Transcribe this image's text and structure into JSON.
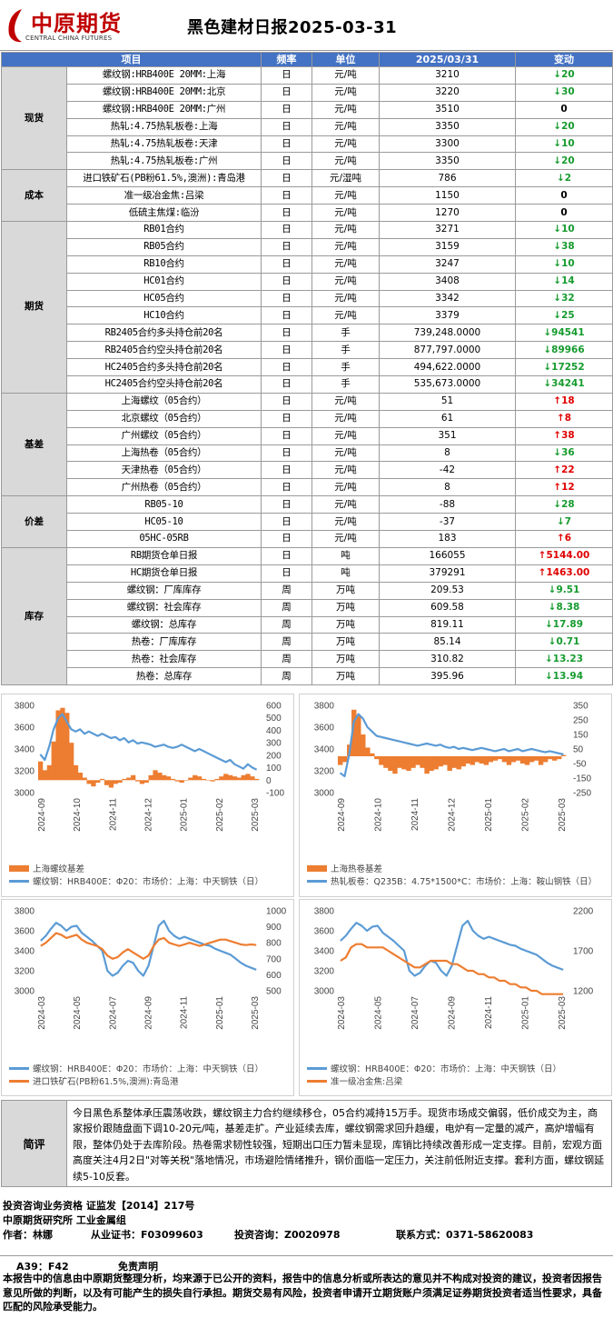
{
  "header": {
    "logo_cn": "中原期货",
    "logo_en": "CENTRAL CHINA FUTURES",
    "title": "黑色建材日报2025-03-31",
    "brand_color": "#c00000"
  },
  "table": {
    "columns": [
      "项目",
      "频率",
      "单位",
      "2025/03/31",
      "变动"
    ],
    "groups": [
      {
        "category": "现货",
        "rows": [
          {
            "item": "螺纹钢:HRB400E 20MM:上海",
            "freq": "日",
            "unit": "元/吨",
            "value": "3210",
            "dir": "down",
            "change": "20"
          },
          {
            "item": "螺纹钢:HRB400E 20MM:北京",
            "freq": "日",
            "unit": "元/吨",
            "value": "3220",
            "dir": "down",
            "change": "30"
          },
          {
            "item": "螺纹钢:HRB400E 20MM:广州",
            "freq": "日",
            "unit": "元/吨",
            "value": "3510",
            "dir": "none",
            "change": "0"
          },
          {
            "item": "热轧:4.75热轧板卷:上海",
            "freq": "日",
            "unit": "元/吨",
            "value": "3350",
            "dir": "down",
            "change": "20"
          },
          {
            "item": "热轧:4.75热轧板卷:天津",
            "freq": "日",
            "unit": "元/吨",
            "value": "3300",
            "dir": "down",
            "change": "10"
          },
          {
            "item": "热轧:4.75热轧板卷:广州",
            "freq": "日",
            "unit": "元/吨",
            "value": "3350",
            "dir": "down",
            "change": "20"
          }
        ]
      },
      {
        "category": "成本",
        "rows": [
          {
            "item": "进口铁矿石(PB粉61.5%,澳洲):青岛港",
            "freq": "日",
            "unit": "元/湿吨",
            "value": "786",
            "dir": "down",
            "change": "2"
          },
          {
            "item": "准一级冶金焦:吕梁",
            "freq": "日",
            "unit": "元/吨",
            "value": "1150",
            "dir": "none",
            "change": "0"
          },
          {
            "item": "低硫主焦煤:临汾",
            "freq": "日",
            "unit": "元/吨",
            "value": "1270",
            "dir": "none",
            "change": "0"
          }
        ]
      },
      {
        "category": "期货",
        "rows": [
          {
            "item": "RB01合约",
            "freq": "日",
            "unit": "元/吨",
            "value": "3271",
            "dir": "down",
            "change": "10"
          },
          {
            "item": "RB05合约",
            "freq": "日",
            "unit": "元/吨",
            "value": "3159",
            "dir": "down",
            "change": "38"
          },
          {
            "item": "RB10合约",
            "freq": "日",
            "unit": "元/吨",
            "value": "3247",
            "dir": "down",
            "change": "10"
          },
          {
            "item": "HC01合约",
            "freq": "日",
            "unit": "元/吨",
            "value": "3408",
            "dir": "down",
            "change": "14"
          },
          {
            "item": "HC05合约",
            "freq": "日",
            "unit": "元/吨",
            "value": "3342",
            "dir": "down",
            "change": "32"
          },
          {
            "item": "HC10合约",
            "freq": "日",
            "unit": "元/吨",
            "value": "3379",
            "dir": "down",
            "change": "25"
          },
          {
            "item": "RB2405合约多头持仓前20名",
            "freq": "日",
            "unit": "手",
            "value": "739,248.0000",
            "dir": "down",
            "change": "94541"
          },
          {
            "item": "RB2405合约空头持仓前20名",
            "freq": "日",
            "unit": "手",
            "value": "877,797.0000",
            "dir": "down",
            "change": "89966"
          },
          {
            "item": "HC2405合约多头持仓前20名",
            "freq": "日",
            "unit": "手",
            "value": "494,622.0000",
            "dir": "down",
            "change": "17252"
          },
          {
            "item": "HC2405合约空头持仓前20名",
            "freq": "日",
            "unit": "手",
            "value": "535,673.0000",
            "dir": "down",
            "change": "34241"
          }
        ]
      },
      {
        "category": "基差",
        "rows": [
          {
            "item": "上海螺纹（05合约）",
            "freq": "日",
            "unit": "元/吨",
            "value": "51",
            "dir": "up",
            "change": "18"
          },
          {
            "item": "北京螺纹（05合约）",
            "freq": "日",
            "unit": "元/吨",
            "value": "61",
            "dir": "up",
            "change": "8"
          },
          {
            "item": "广州螺纹（05合约）",
            "freq": "日",
            "unit": "元/吨",
            "value": "351",
            "dir": "up",
            "change": "38"
          },
          {
            "item": "上海热卷（05合约）",
            "freq": "日",
            "unit": "元/吨",
            "value": "8",
            "dir": "down",
            "change": "36"
          },
          {
            "item": "天津热卷（05合约）",
            "freq": "日",
            "unit": "元/吨",
            "value": "-42",
            "dir": "up",
            "change": "22"
          },
          {
            "item": "广州热卷（05合约）",
            "freq": "日",
            "unit": "元/吨",
            "value": "8",
            "dir": "up",
            "change": "12"
          }
        ]
      },
      {
        "category": "价差",
        "rows": [
          {
            "item": "RB05-10",
            "freq": "日",
            "unit": "元/吨",
            "value": "-88",
            "dir": "down",
            "change": "28"
          },
          {
            "item": "HC05-10",
            "freq": "日",
            "unit": "元/吨",
            "value": "-37",
            "dir": "down",
            "change": "7"
          },
          {
            "item": "05HC-05RB",
            "freq": "日",
            "unit": "元/吨",
            "value": "183",
            "dir": "up",
            "change": "6"
          }
        ]
      },
      {
        "category": "库存",
        "rows": [
          {
            "item": "RB期货仓单日报",
            "freq": "日",
            "unit": "吨",
            "value": "166055",
            "dir": "up",
            "change": "5144.00"
          },
          {
            "item": "HC期货仓单日报",
            "freq": "日",
            "unit": "吨",
            "value": "379291",
            "dir": "up",
            "change": "1463.00"
          },
          {
            "item": "螺纹钢：厂库库存",
            "freq": "周",
            "unit": "万吨",
            "value": "209.53",
            "dir": "down",
            "change": "9.51"
          },
          {
            "item": "螺纹钢：社会库存",
            "freq": "周",
            "unit": "万吨",
            "value": "609.58",
            "dir": "down",
            "change": "8.38"
          },
          {
            "item": "螺纹钢：总库存",
            "freq": "周",
            "unit": "万吨",
            "value": "819.11",
            "dir": "down",
            "change": "17.89"
          },
          {
            "item": "热卷：厂库库存",
            "freq": "周",
            "unit": "万吨",
            "value": "85.14",
            "dir": "down",
            "change": "0.71"
          },
          {
            "item": "热卷：社会库存",
            "freq": "周",
            "unit": "万吨",
            "value": "310.82",
            "dir": "down",
            "change": "13.23"
          },
          {
            "item": "热卷：总库存",
            "freq": "周",
            "unit": "万吨",
            "value": "395.96",
            "dir": "down",
            "change": "13.94"
          }
        ]
      }
    ],
    "colors": {
      "header_bg": "#4472c4",
      "category_bg": "#d9d9d9",
      "up": "#e00000",
      "down": "#169b2e"
    },
    "arrows": {
      "up": "↑",
      "down": "↓"
    }
  },
  "chart_data": [
    {
      "type": "line",
      "left_ticks": [
        "3800",
        "3600",
        "3400",
        "3200",
        "3000"
      ],
      "right_ticks": [
        "600",
        "500",
        "400",
        "300",
        "200",
        "100",
        "0",
        "-100"
      ],
      "x_ticks": [
        "2024-09",
        "2024-10",
        "2024-11",
        "2024-12",
        "2025-01",
        "2025-02",
        "2025-03"
      ],
      "ylim": [
        3000,
        3800
      ],
      "y2lim": [
        -100,
        600
      ],
      "series": [
        {
          "name": "上海螺纹基差",
          "kind": "bar",
          "axis": "right",
          "color": "#ed7d31",
          "values": [
            150,
            80,
            120,
            310,
            560,
            580,
            540,
            300,
            120,
            60,
            20,
            -30,
            -50,
            -20,
            10,
            -40,
            -60,
            -30,
            -20,
            10,
            20,
            40,
            -10,
            -30,
            -20,
            40,
            80,
            60,
            40,
            30,
            10,
            -10,
            -20,
            0,
            20,
            40,
            30,
            10,
            0,
            -10,
            10,
            30,
            50,
            40,
            30,
            20,
            40,
            50,
            30,
            10
          ]
        },
        {
          "name": "螺纹钢：HRB400E：Φ20：市场价：上海：中天钢铁（日）",
          "kind": "line",
          "axis": "left",
          "color": "#5b9bd5",
          "values": [
            3350,
            3300,
            3420,
            3580,
            3680,
            3720,
            3650,
            3580,
            3560,
            3580,
            3540,
            3560,
            3540,
            3520,
            3540,
            3520,
            3500,
            3510,
            3480,
            3500,
            3460,
            3480,
            3450,
            3460,
            3450,
            3440,
            3420,
            3430,
            3440,
            3420,
            3410,
            3420,
            3440,
            3420,
            3400,
            3380,
            3400,
            3380,
            3360,
            3340,
            3320,
            3300,
            3280,
            3300,
            3260,
            3240,
            3220,
            3260,
            3230,
            3210
          ]
        }
      ]
    },
    {
      "type": "line",
      "left_ticks": [
        "3800",
        "3600",
        "3400",
        "3200",
        "3000"
      ],
      "right_ticks": [
        "350",
        "250",
        "150",
        "50",
        "-50",
        "-150",
        "-250"
      ],
      "x_ticks": [
        "2024-09",
        "2024-10",
        "2024-11",
        "2024-12",
        "2025-01",
        "2025-02",
        "2025-03"
      ],
      "ylim": [
        3000,
        3800
      ],
      "y2lim": [
        -250,
        350
      ],
      "series": [
        {
          "name": "上海热卷基差",
          "kind": "bar",
          "axis": "right",
          "color": "#ed7d31",
          "values": [
            -60,
            -40,
            80,
            320,
            280,
            150,
            60,
            20,
            -20,
            -60,
            -80,
            -100,
            -120,
            -80,
            -90,
            -100,
            -80,
            -60,
            -80,
            -120,
            -100,
            -90,
            -70,
            -60,
            -100,
            -80,
            -90,
            -70,
            -50,
            -60,
            -40,
            -50,
            -60,
            -40,
            -30,
            -20,
            -40,
            -60,
            -40,
            -30,
            -50,
            -60,
            -40,
            -30,
            -60,
            -40,
            -20,
            -30,
            -20,
            8
          ]
        },
        {
          "name": "热轧板卷：Q235B：4.75*1500*C：市场价：上海：鞍山钢铁（日）",
          "kind": "line",
          "axis": "left",
          "color": "#5b9bd5",
          "values": [
            3180,
            3150,
            3350,
            3650,
            3720,
            3680,
            3600,
            3560,
            3520,
            3510,
            3500,
            3490,
            3480,
            3470,
            3460,
            3450,
            3440,
            3430,
            3440,
            3450,
            3440,
            3430,
            3440,
            3420,
            3410,
            3420,
            3400,
            3410,
            3400,
            3390,
            3400,
            3410,
            3400,
            3390,
            3380,
            3390,
            3400,
            3380,
            3390,
            3400,
            3380,
            3390,
            3400,
            3390,
            3380,
            3370,
            3380,
            3370,
            3360,
            3350
          ]
        }
      ]
    },
    {
      "type": "line",
      "left_ticks": [
        "3800",
        "3600",
        "3400",
        "3200",
        "3000"
      ],
      "right_ticks": [
        "1000",
        "900",
        "800",
        "700",
        "600",
        "500"
      ],
      "x_ticks": [
        "2024-03",
        "2024-05",
        "2024-07",
        "2024-09",
        "2024-11",
        "2025-01",
        "2025-03"
      ],
      "ylim": [
        3000,
        3800
      ],
      "y2lim": [
        500,
        1000
      ],
      "series": [
        {
          "name": "螺纹钢：HRB400E：Φ20：市场价：上海：中天钢铁（日）",
          "kind": "line",
          "axis": "left",
          "color": "#5b9bd5",
          "values": [
            3500,
            3550,
            3620,
            3680,
            3650,
            3600,
            3640,
            3650,
            3580,
            3540,
            3500,
            3450,
            3400,
            3200,
            3150,
            3180,
            3250,
            3300,
            3280,
            3200,
            3150,
            3250,
            3450,
            3650,
            3700,
            3600,
            3550,
            3520,
            3540,
            3520,
            3500,
            3480,
            3460,
            3450,
            3420,
            3400,
            3380,
            3360,
            3320,
            3280,
            3250,
            3230,
            3210
          ]
        },
        {
          "name": "进口铁矿石(PB粉61.5%,澳洲):青岛港",
          "kind": "line",
          "axis": "right",
          "color": "#ed7d31",
          "values": [
            780,
            800,
            830,
            860,
            850,
            830,
            840,
            850,
            820,
            800,
            790,
            780,
            760,
            720,
            700,
            710,
            740,
            760,
            740,
            720,
            700,
            720,
            780,
            820,
            830,
            800,
            790,
            780,
            790,
            800,
            790,
            780,
            790,
            800,
            810,
            820,
            820,
            810,
            800,
            790,
            786,
            790,
            786
          ]
        }
      ]
    },
    {
      "type": "line",
      "left_ticks": [
        "3800",
        "3600",
        "3400",
        "3200",
        "3000"
      ],
      "right_ticks": [
        "2200",
        "1700",
        "1200"
      ],
      "x_ticks": [
        "2024-03",
        "2024-05",
        "2024-07",
        "2024-09",
        "2024-11",
        "2025-01",
        "2025-03"
      ],
      "ylim": [
        3000,
        3800
      ],
      "y2lim": [
        1200,
        2400
      ],
      "series": [
        {
          "name": "螺纹钢：HRB400E：Φ20：市场价：上海：中天钢铁（日）",
          "kind": "line",
          "axis": "left",
          "color": "#5b9bd5",
          "values": [
            3500,
            3550,
            3620,
            3680,
            3650,
            3600,
            3640,
            3650,
            3580,
            3540,
            3500,
            3450,
            3400,
            3200,
            3150,
            3180,
            3250,
            3300,
            3280,
            3200,
            3150,
            3250,
            3450,
            3650,
            3700,
            3600,
            3550,
            3520,
            3540,
            3520,
            3500,
            3480,
            3460,
            3450,
            3420,
            3400,
            3380,
            3360,
            3320,
            3280,
            3250,
            3230,
            3210
          ]
        },
        {
          "name": "准一级冶金焦:吕梁",
          "kind": "line",
          "axis": "right",
          "color": "#ed7d31",
          "values": [
            1650,
            1700,
            1850,
            1900,
            1900,
            1850,
            1850,
            1850,
            1850,
            1800,
            1750,
            1700,
            1650,
            1600,
            1550,
            1550,
            1600,
            1650,
            1650,
            1650,
            1650,
            1600,
            1600,
            1550,
            1500,
            1500,
            1450,
            1450,
            1400,
            1400,
            1350,
            1350,
            1300,
            1300,
            1250,
            1250,
            1200,
            1200,
            1150,
            1150,
            1150,
            1150,
            1150
          ]
        }
      ]
    }
  ],
  "comment": {
    "label": "简评",
    "text": "今日黑色系整体承压震荡收跌，螺纹钢主力合约继续移仓，05合约减持15万手。现货市场成交偏弱，低价成交为主，商家报价跟随盘面下调10-20元/吨，基差走扩。产业延续去库，螺纹钢需求回升趋缓，电炉有一定量的减产，高炉增幅有限，整体仍处于去库阶段。热卷需求韧性较强，短期出口压力暂未显现，库销比持续改善形成一定支撑。目前，宏观方面高度关注4月2日\"对等关税\"落地情况，市场避险情绪推升，钢价面临一定压力，关注前低附近支撑。套利方面，螺纹钢延续5-10反套。"
  },
  "info": {
    "qualification": "投资咨询业务资格   证监发【2014】217号",
    "institute": "中原期货研究所   工业金属组",
    "author_label": "作者：",
    "author": "林娜",
    "license_label": "从业证书：",
    "license": "F03099603",
    "consult_label": "投资咨询：",
    "consult": "Z0020978",
    "contact_label": "联系方式：",
    "contact": "0371-58620083"
  },
  "disclaimer": {
    "code": "A39：F42",
    "title": "免责声明",
    "body": "本报告中的信息由中原期货整理分析，均来源于已公开的资料，报告中的信息分析或所表达的意见并不构成对投资的建议，投资者因报告意见所做的判断，以及有可能产生的损失自行承担。期货交易有风险，投资者申请开立期货账户须满足证券期货投资者适当性要求，具备匹配的风险承受能力。"
  }
}
